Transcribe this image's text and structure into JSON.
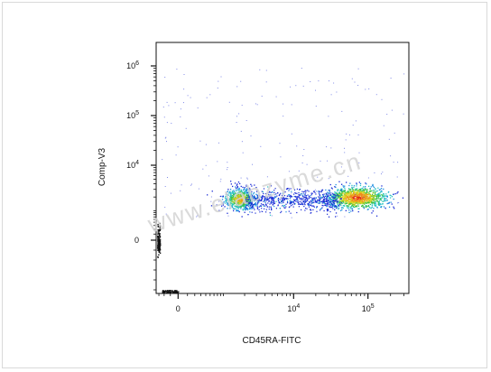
{
  "chart_data": {
    "type": "scatter",
    "subtype": "flow-cytometry-density-dot-plot",
    "xlabel": "CD45RA-FITC",
    "ylabel": "Comp-V3",
    "x_scale": "biexponential",
    "y_scale": "biexponential",
    "x_ticks": [
      {
        "label": "0",
        "value": 0
      },
      {
        "label": "10",
        "exp": "4",
        "value": 10000
      },
      {
        "label": "10",
        "exp": "5",
        "value": 100000
      }
    ],
    "y_ticks": [
      {
        "label": "0",
        "value": 0
      },
      {
        "label": "10",
        "exp": "4",
        "value": 10000
      },
      {
        "label": "10",
        "exp": "5",
        "value": 100000
      },
      {
        "label": "10",
        "exp": "6",
        "value": 1000000
      }
    ],
    "populations": [
      {
        "x_center": 1500,
        "y_center": 1800,
        "density": "high"
      },
      {
        "x_center": 10000,
        "y_center": 1500,
        "density": "low"
      },
      {
        "x_center": 80000,
        "y_center": 2000,
        "density": "high"
      }
    ],
    "density_colors": [
      "#1a2bd6",
      "#1e8fe0",
      "#2cc4c4",
      "#39c24a",
      "#d8d21e",
      "#f08a1c",
      "#e02418"
    ],
    "grid": false,
    "legend": "none",
    "watermark": "www.elabzyme.cn"
  }
}
